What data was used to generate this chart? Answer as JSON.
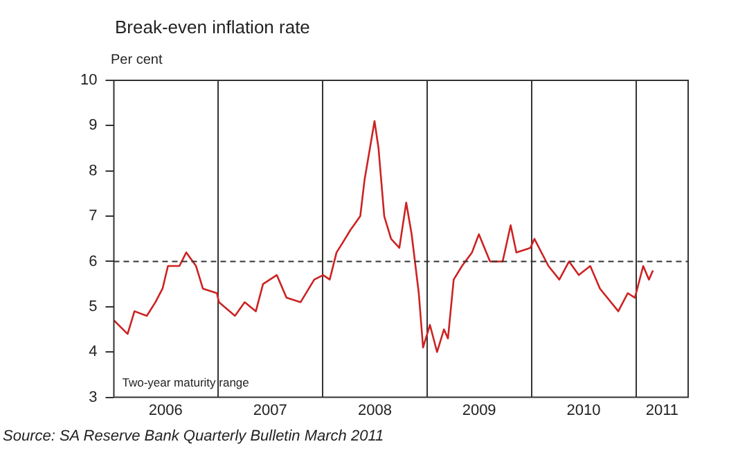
{
  "chart_data": {
    "type": "line",
    "title": "Break-even inflation rate",
    "ylabel": "Per cent",
    "x": [
      "2006-01-01",
      "2006-02-18",
      "2006-03-14",
      "2006-04-26",
      "2006-05-26",
      "2006-06-20",
      "2006-07-09",
      "2006-08-18",
      "2006-09-11",
      "2006-10-15",
      "2006-11-08",
      "2006-12-27",
      "2007-01-03",
      "2007-02-28",
      "2007-04-03",
      "2007-05-12",
      "2007-06-06",
      "2007-07-24",
      "2007-08-27",
      "2007-10-15",
      "2007-12-02",
      "2008-01-02",
      "2008-01-25",
      "2008-02-18",
      "2008-03-09",
      "2008-04-07",
      "2008-05-11",
      "2008-05-26",
      "2008-06-30",
      "2008-07-14",
      "2008-08-03",
      "2008-08-27",
      "2008-09-25",
      "2008-10-19",
      "2008-11-07",
      "2008-12-02",
      "2008-12-17",
      "2009-01-10",
      "2009-02-04",
      "2009-02-28",
      "2009-03-14",
      "2009-04-03",
      "2009-05-02",
      "2009-06-06",
      "2009-06-30",
      "2009-08-08",
      "2009-09-21",
      "2009-10-19",
      "2009-11-08",
      "2009-12-27",
      "2010-01-10",
      "2010-02-28",
      "2010-04-07",
      "2010-05-11",
      "2010-06-14",
      "2010-07-24",
      "2010-08-27",
      "2010-10-30",
      "2010-12-02",
      "2010-12-27",
      "2011-01-25",
      "2011-02-14",
      "2011-02-28"
    ],
    "series": [
      {
        "color": "#cc2222",
        "values": [
          4.7,
          4.4,
          4.9,
          4.8,
          5.1,
          5.4,
          5.9,
          5.9,
          6.2,
          5.9,
          5.4,
          5.3,
          5.1,
          4.8,
          5.1,
          4.9,
          5.5,
          5.7,
          5.2,
          5.1,
          5.6,
          5.7,
          5.6,
          6.2,
          6.4,
          6.7,
          7.0,
          7.8,
          9.1,
          8.5,
          7.0,
          6.5,
          6.3,
          7.3,
          6.6,
          5.3,
          4.1,
          4.6,
          4.0,
          4.5,
          4.3,
          5.6,
          5.9,
          6.2,
          6.6,
          6.0,
          6.0,
          6.8,
          6.2,
          6.3,
          6.5,
          5.9,
          5.6,
          6.0,
          5.7,
          5.9,
          5.4,
          4.9,
          5.3,
          5.2,
          5.9,
          5.6,
          5.8
        ]
      }
    ],
    "xlim": [
      "2006-01-01",
      "2011-07-01"
    ],
    "xticks": [
      {
        "value": "2006-07-01",
        "label": "2006"
      },
      {
        "value": "2007-01-01",
        "label": null
      },
      {
        "value": "2007-07-01",
        "label": "2007"
      },
      {
        "value": "2008-01-01",
        "label": null
      },
      {
        "value": "2008-07-01",
        "label": "2008"
      },
      {
        "value": "2009-01-01",
        "label": null
      },
      {
        "value": "2009-07-01",
        "label": "2009"
      },
      {
        "value": "2010-01-01",
        "label": null
      },
      {
        "value": "2010-07-01",
        "label": "2010"
      },
      {
        "value": "2011-01-01",
        "label": null
      },
      {
        "value": "2011-04-01",
        "label": "2011"
      }
    ],
    "ylim": [
      3,
      10
    ],
    "yticks": [
      3,
      4,
      5,
      6,
      7,
      8,
      9,
      10
    ],
    "grid": "x",
    "marker": "none",
    "line_style": "solid",
    "ref_lines": [
      {
        "axis": "y",
        "value": 6,
        "line_style": "dashed",
        "color": "#333333"
      }
    ],
    "annotations": [
      "Two-year maturity range",
      "Source:  SA Reserve Bank Quarterly Bulletin March 2011"
    ]
  }
}
